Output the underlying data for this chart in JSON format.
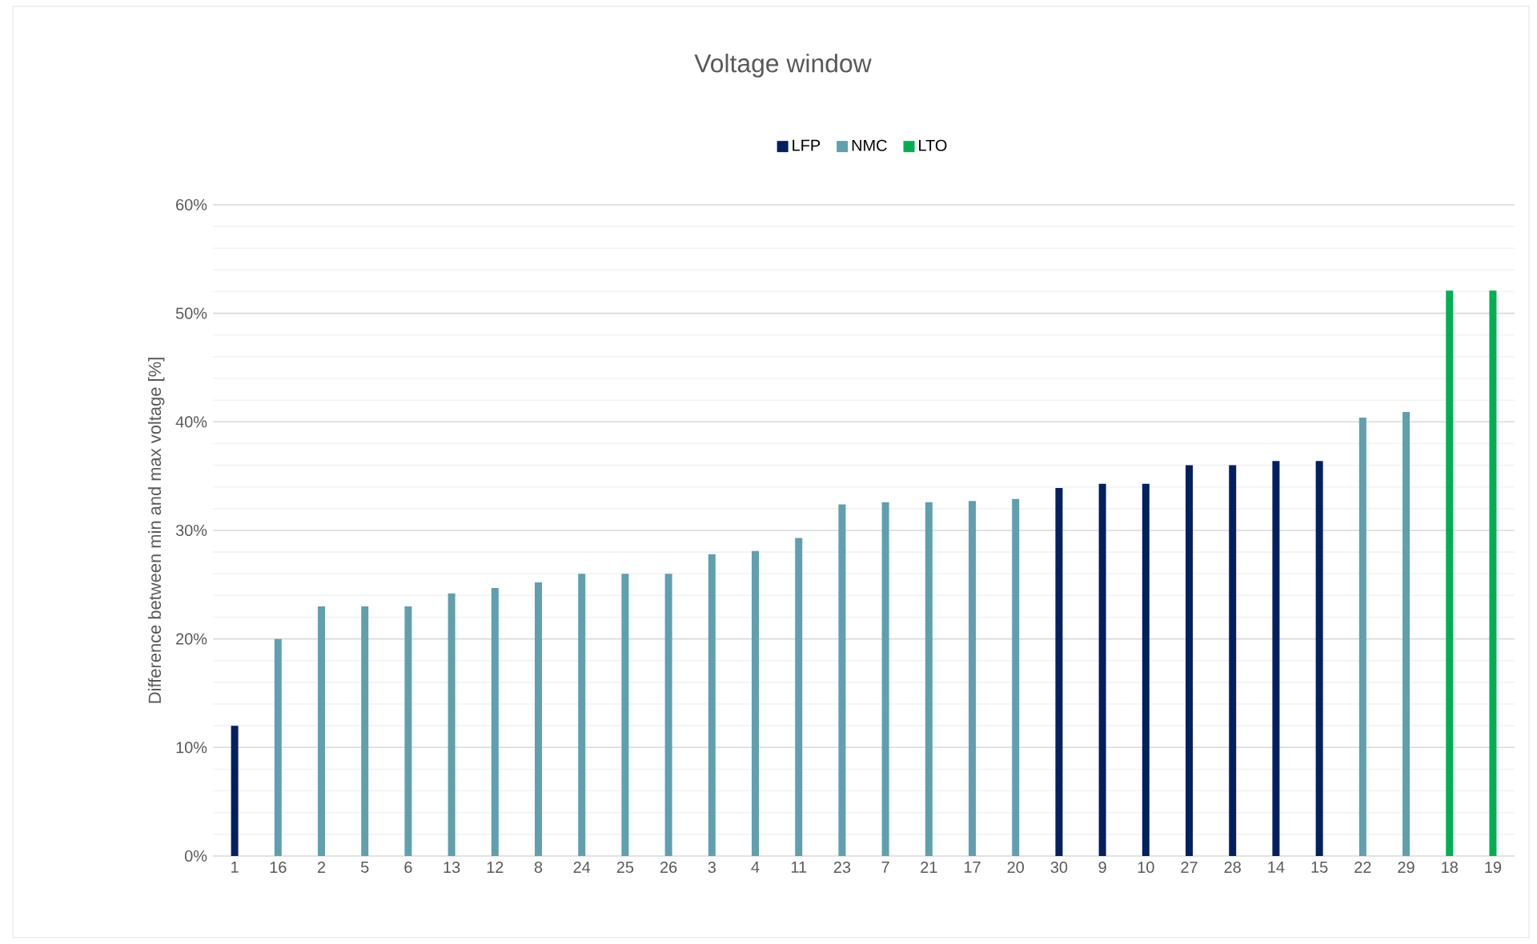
{
  "chart_data": {
    "type": "bar",
    "title": "Voltage window",
    "ylabel": "Difference between min and max voltage [%]",
    "categories": [
      "1",
      "16",
      "2",
      "5",
      "6",
      "13",
      "12",
      "8",
      "24",
      "25",
      "26",
      "3",
      "4",
      "11",
      "23",
      "7",
      "21",
      "17",
      "20",
      "30",
      "9",
      "10",
      "27",
      "28",
      "14",
      "15",
      "22",
      "29",
      "18",
      "19"
    ],
    "series": [
      {
        "name": "LFP",
        "color": "#002060",
        "values": [
          12,
          null,
          null,
          null,
          null,
          null,
          null,
          null,
          null,
          null,
          null,
          null,
          null,
          null,
          null,
          null,
          null,
          null,
          null,
          33.9,
          34.3,
          34.3,
          36.0,
          36.0,
          36.4,
          36.4,
          null,
          null,
          null,
          null
        ]
      },
      {
        "name": "NMC",
        "color": "#5f9fb0",
        "values": [
          null,
          20,
          23,
          23,
          23,
          24.2,
          24.7,
          25.2,
          26,
          26,
          26,
          27.8,
          28.1,
          29.3,
          32.4,
          32.6,
          32.6,
          32.7,
          32.9,
          null,
          null,
          null,
          null,
          null,
          null,
          null,
          40.4,
          40.9,
          null,
          null
        ]
      },
      {
        "name": "LTO",
        "color": "#00b050",
        "values": [
          null,
          null,
          null,
          null,
          null,
          null,
          null,
          null,
          null,
          null,
          null,
          null,
          null,
          null,
          null,
          null,
          null,
          null,
          null,
          null,
          null,
          null,
          null,
          null,
          null,
          null,
          null,
          null,
          52.1,
          52.1
        ]
      }
    ],
    "ylim": [
      0,
      60
    ],
    "yticks": [
      {
        "value": 0,
        "label": "0%"
      },
      {
        "value": 2,
        "label": null
      },
      {
        "value": 4,
        "label": null
      },
      {
        "value": 6,
        "label": null
      },
      {
        "value": 8,
        "label": null
      },
      {
        "value": 10,
        "label": "10%"
      },
      {
        "value": 12,
        "label": null
      },
      {
        "value": 14,
        "label": null
      },
      {
        "value": 16,
        "label": null
      },
      {
        "value": 18,
        "label": null
      },
      {
        "value": 20,
        "label": "20%"
      },
      {
        "value": 22,
        "label": null
      },
      {
        "value": 24,
        "label": null
      },
      {
        "value": 26,
        "label": null
      },
      {
        "value": 28,
        "label": null
      },
      {
        "value": 30,
        "label": "30%"
      },
      {
        "value": 32,
        "label": null
      },
      {
        "value": 34,
        "label": null
      },
      {
        "value": 36,
        "label": null
      },
      {
        "value": 38,
        "label": null
      },
      {
        "value": 40,
        "label": "40%"
      },
      {
        "value": 42,
        "label": null
      },
      {
        "value": 44,
        "label": null
      },
      {
        "value": 46,
        "label": null
      },
      {
        "value": 48,
        "label": null
      },
      {
        "value": 50,
        "label": "50%"
      },
      {
        "value": 52,
        "label": null
      },
      {
        "value": 54,
        "label": null
      },
      {
        "value": 56,
        "label": null
      },
      {
        "value": 58,
        "label": null
      },
      {
        "value": 60,
        "label": "60%"
      }
    ],
    "grid": true,
    "legend": "top"
  }
}
